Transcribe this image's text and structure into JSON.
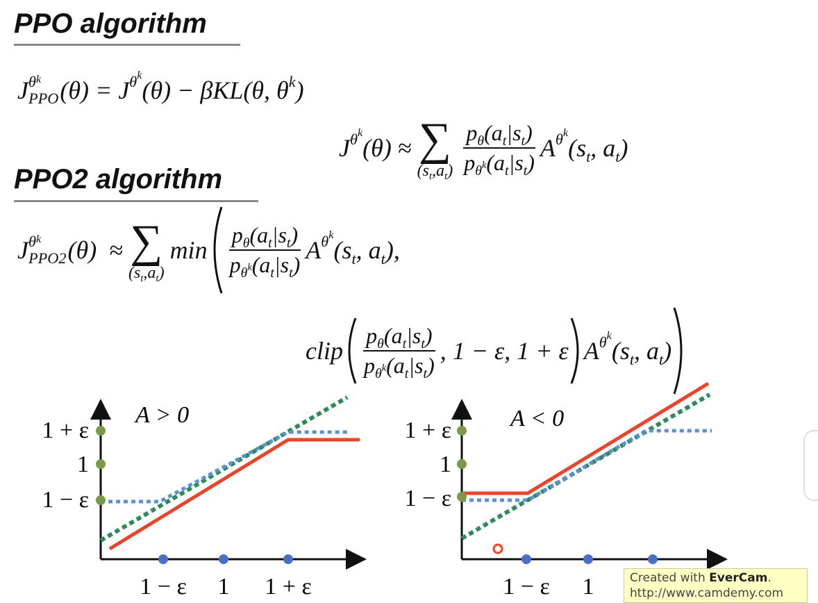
{
  "sections": [
    {
      "title": "PPO algorithm",
      "formula": [
        "J",
        "θ",
        "k",
        "PPO",
        "(θ) = J",
        "θ",
        "k",
        "(θ) − βKL(θ, θ",
        "k",
        ")"
      ]
    },
    {
      "title": "PPO2 algorithm",
      "formula": [
        "J",
        "θ",
        "k",
        "PPO2",
        "(θ)  ≈"
      ]
    }
  ],
  "approx": [
    "J",
    "θ",
    "k",
    "(θ) ≈"
  ],
  "sum": {
    "symbol": "∑",
    "index": [
      "(s",
      "t",
      ",a",
      "t",
      ")"
    ]
  },
  "ratio": {
    "numerator": [
      "p",
      "θ",
      "(a",
      "t",
      "|s",
      "t",
      ")"
    ],
    "denominator": [
      "p",
      "θ",
      "k",
      "(a",
      "t",
      "|s",
      "t",
      ")"
    ]
  },
  "advantage": [
    "A",
    "θ",
    "k",
    "(s",
    "t",
    ", a",
    "t",
    ")"
  ],
  "min": "min",
  "comma": ",",
  "clip": "clip",
  "clip_bounds": ", 1 − ε, 1 + ε",
  "plots": [
    {
      "label": "A > 0",
      "yticks": [
        "1 + ε",
        "1",
        "1 − ε"
      ],
      "xticks": [
        "1 − ε",
        "1",
        "1 + ε"
      ]
    },
    {
      "label": "A < 0",
      "yticks": [
        "1 + ε",
        "1",
        "1 − ε"
      ],
      "xticks": [
        "1 − ε",
        "1"
      ]
    }
  ],
  "watermark": {
    "text": "Created with ",
    "brand": "EverCam",
    "dot": ".",
    "url": "http://www.camdemy.com"
  }
}
